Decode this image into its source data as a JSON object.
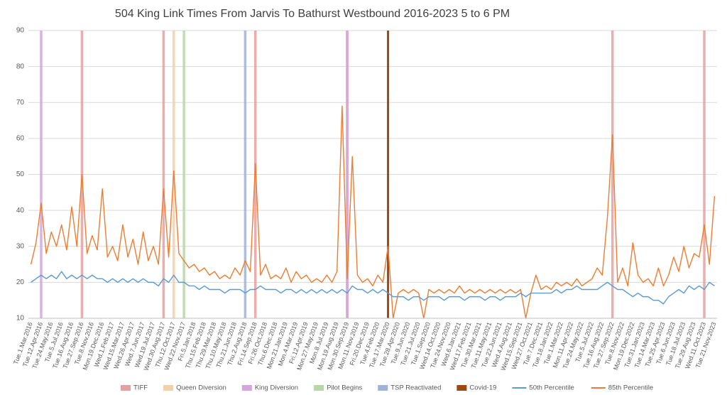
{
  "chart_data": {
    "type": "line",
    "title": "504 King Link Times From Jarvis To Bathurst Westbound 2016-2023 5 to 6 PM",
    "categories": [
      "Tue.1.Mar.2016",
      null,
      "Tue.12.Apr.2016",
      null,
      "Tue.24.May.2016",
      null,
      "Tue.5.Jul.2016",
      null,
      "Tue.16.Aug.2016",
      null,
      "Tue.27.Sep.2016",
      null,
      "Tue.8.Nov.2016",
      null,
      "Mon.19.Dec.2016",
      null,
      "Wed.1.Feb.2017",
      null,
      "Wed.15.Mar.2017",
      null,
      "Wed.26.Apr.2017",
      null,
      "Wed.7.Jun.2017",
      null,
      "Wed.19.Jul.2017",
      null,
      "Wed.30.Aug.2017",
      null,
      "Thu.12.Oct.2017",
      null,
      "Wed.22.Nov.2017",
      null,
      "Fri.5.Jan.2018",
      null,
      "Thu.15.Feb.2018",
      null,
      "Thu.29.Mar.2018",
      null,
      "Thu.10.May.2018",
      null,
      "Thu.21.Jun.2018",
      null,
      "Thu.2.Aug.2018",
      null,
      "Fri.14.Sep.2018",
      null,
      "Fri.26.Oct.2018",
      null,
      "Thu.6.Dec.2018",
      null,
      "Mon.21.Jan.2019",
      null,
      "Mon.4.Mar.2019",
      null,
      "Fri.12.Apr.2019",
      null,
      "Mon.27.May.2019",
      null,
      "Mon.8.Jul.2019",
      null,
      "Mon.19.Aug.2019",
      null,
      "Mon.30.Sep.2019",
      null,
      "Mon.11.Nov.2019",
      null,
      "Fri.20.Dec.2019",
      null,
      "Tue.4.Feb.2020",
      null,
      "Tue.17.Mar.2020",
      null,
      "Tue.28.Apr.2020",
      null,
      "Tue.9.Jun.2020",
      null,
      "Tue.21.Jul.2020",
      null,
      "Tue.1.Sep.2020",
      null,
      "Wed.14.Oct.2020",
      null,
      "Tue.24.Nov.2020",
      null,
      "Wed.6.Jan.2021",
      null,
      "Wed.17.Feb.2021",
      null,
      "Tue.30.Mar.2021",
      null,
      "Tue.11.May.2021",
      null,
      "Tue.22.Jun.2021",
      null,
      "Wed.4.Aug.2021",
      null,
      "Wed.15.Sep.2021",
      null,
      "Wed.27.Oct.2021",
      null,
      "Tue.7.Dec.2021",
      null,
      "Tue.18.Jan.2022",
      null,
      "Tue.1.Mar.2022",
      null,
      "Mon.11.Apr.2022",
      null,
      "Tue.24.May.2022",
      null,
      "Tue.5.Jul.2022",
      null,
      "Tue.16.Aug.2022",
      null,
      "Tue.27.Sep.2022",
      null,
      "Tue.8.Nov.2022",
      null,
      "Mon.19.Dec.2022",
      null,
      "Tue.31.Jan.2023",
      null,
      "Tue.14.Mar.2023",
      null,
      "Tue.25.Apr.2023",
      null,
      "Tue.6.Jun.2023",
      null,
      "Tue.18.Jul.2023",
      null,
      "Tue.29.Aug.2023",
      null,
      "Wed.11.Oct.2023",
      null,
      "Tue.21.Nov.2023"
    ],
    "events": [
      {
        "name": "TIFF",
        "color": "#e6a0a0",
        "x": [
          "Tue.27.Sep.2016",
          "Wed.30.Aug.2017",
          "Fri.14.Sep.2018",
          "Mon.30.Sep.2019",
          "Tue.27.Sep.2022",
          "Wed.11.Oct.2023"
        ],
        "values": [
          90,
          90,
          90,
          90,
          90,
          90
        ]
      },
      {
        "name": "Queen Diversion",
        "color": "#f5cfa8",
        "x": [
          "Thu.12.Oct.2017"
        ],
        "values": [
          90
        ]
      },
      {
        "name": "King Diversion",
        "color": "#d4a6dc",
        "x": [
          "Tue.12.Apr.2016",
          "Mon.30.Sep.2019"
        ],
        "values": [
          90,
          90
        ]
      },
      {
        "name": "Pilot Begins",
        "color": "#b6d7a8",
        "x": [
          "Wed.22.Nov.2017"
        ],
        "values": [
          90
        ]
      },
      {
        "name": "TSP Reactivated",
        "color": "#9fb3d9",
        "x": [
          "Thu.2.Aug.2018"
        ],
        "values": [
          90
        ]
      },
      {
        "name": "Covid-19",
        "color": "#9c4a14",
        "x": [
          "Tue.17.Mar.2020"
        ],
        "values": [
          90
        ]
      }
    ],
    "series": [
      {
        "name": "50th Percentile",
        "color": "#5b9bd5",
        "values": [
          20,
          21,
          22,
          21,
          22,
          21,
          23,
          21,
          22,
          21,
          22,
          21,
          22,
          21,
          21,
          20,
          21,
          20,
          21,
          20,
          21,
          20,
          21,
          20,
          20,
          19,
          21,
          20,
          22,
          20,
          20,
          19,
          19,
          18,
          19,
          18,
          18,
          18,
          17,
          18,
          18,
          18,
          17,
          18,
          18,
          19,
          18,
          18,
          18,
          17,
          18,
          18,
          17,
          18,
          17,
          18,
          17,
          18,
          17,
          18,
          17,
          18,
          17,
          19,
          18,
          18,
          17,
          18,
          17,
          18,
          17,
          16,
          16,
          16,
          15,
          16,
          16,
          15,
          16,
          16,
          16,
          15,
          16,
          16,
          16,
          15,
          16,
          16,
          16,
          15,
          16,
          16,
          15,
          16,
          16,
          16,
          17,
          16,
          17,
          17,
          17,
          17,
          17,
          18,
          17,
          18,
          18,
          19,
          18,
          18,
          18,
          18,
          19,
          20,
          19,
          18,
          18,
          17,
          16,
          17,
          16,
          16,
          15,
          15,
          14,
          16,
          17,
          18,
          17,
          19,
          18,
          19,
          18,
          20,
          19
        ]
      },
      {
        "name": "85th Percentile",
        "color": "#ed7d31",
        "values": [
          25,
          31,
          42,
          28,
          34,
          30,
          36,
          29,
          41,
          30,
          50,
          28,
          33,
          29,
          46,
          27,
          30,
          26,
          36,
          27,
          32,
          25,
          34,
          26,
          30,
          25,
          46,
          27,
          51,
          28,
          26,
          24,
          25,
          23,
          24,
          22,
          23,
          21,
          22,
          21,
          24,
          22,
          26,
          23,
          53,
          22,
          25,
          21,
          22,
          21,
          24,
          20,
          23,
          21,
          22,
          20,
          21,
          20,
          22,
          20,
          23,
          69,
          21,
          55,
          22,
          20,
          21,
          19,
          22,
          20,
          30,
          10,
          17,
          18,
          17,
          18,
          17,
          10,
          18,
          17,
          18,
          17,
          18,
          17,
          19,
          17,
          18,
          17,
          18,
          17,
          18,
          17,
          18,
          17,
          18,
          17,
          18,
          10,
          17,
          22,
          18,
          19,
          18,
          20,
          19,
          20,
          19,
          21,
          19,
          20,
          21,
          24,
          22,
          38,
          61,
          20,
          24,
          19,
          31,
          22,
          20,
          21,
          19,
          24,
          19,
          22,
          27,
          23,
          30,
          24,
          28,
          27,
          36,
          25,
          44
        ]
      }
    ],
    "ylim": [
      10,
      90
    ],
    "yticks": [
      10,
      20,
      30,
      40,
      50,
      60,
      70,
      80,
      90
    ],
    "grid": true
  }
}
